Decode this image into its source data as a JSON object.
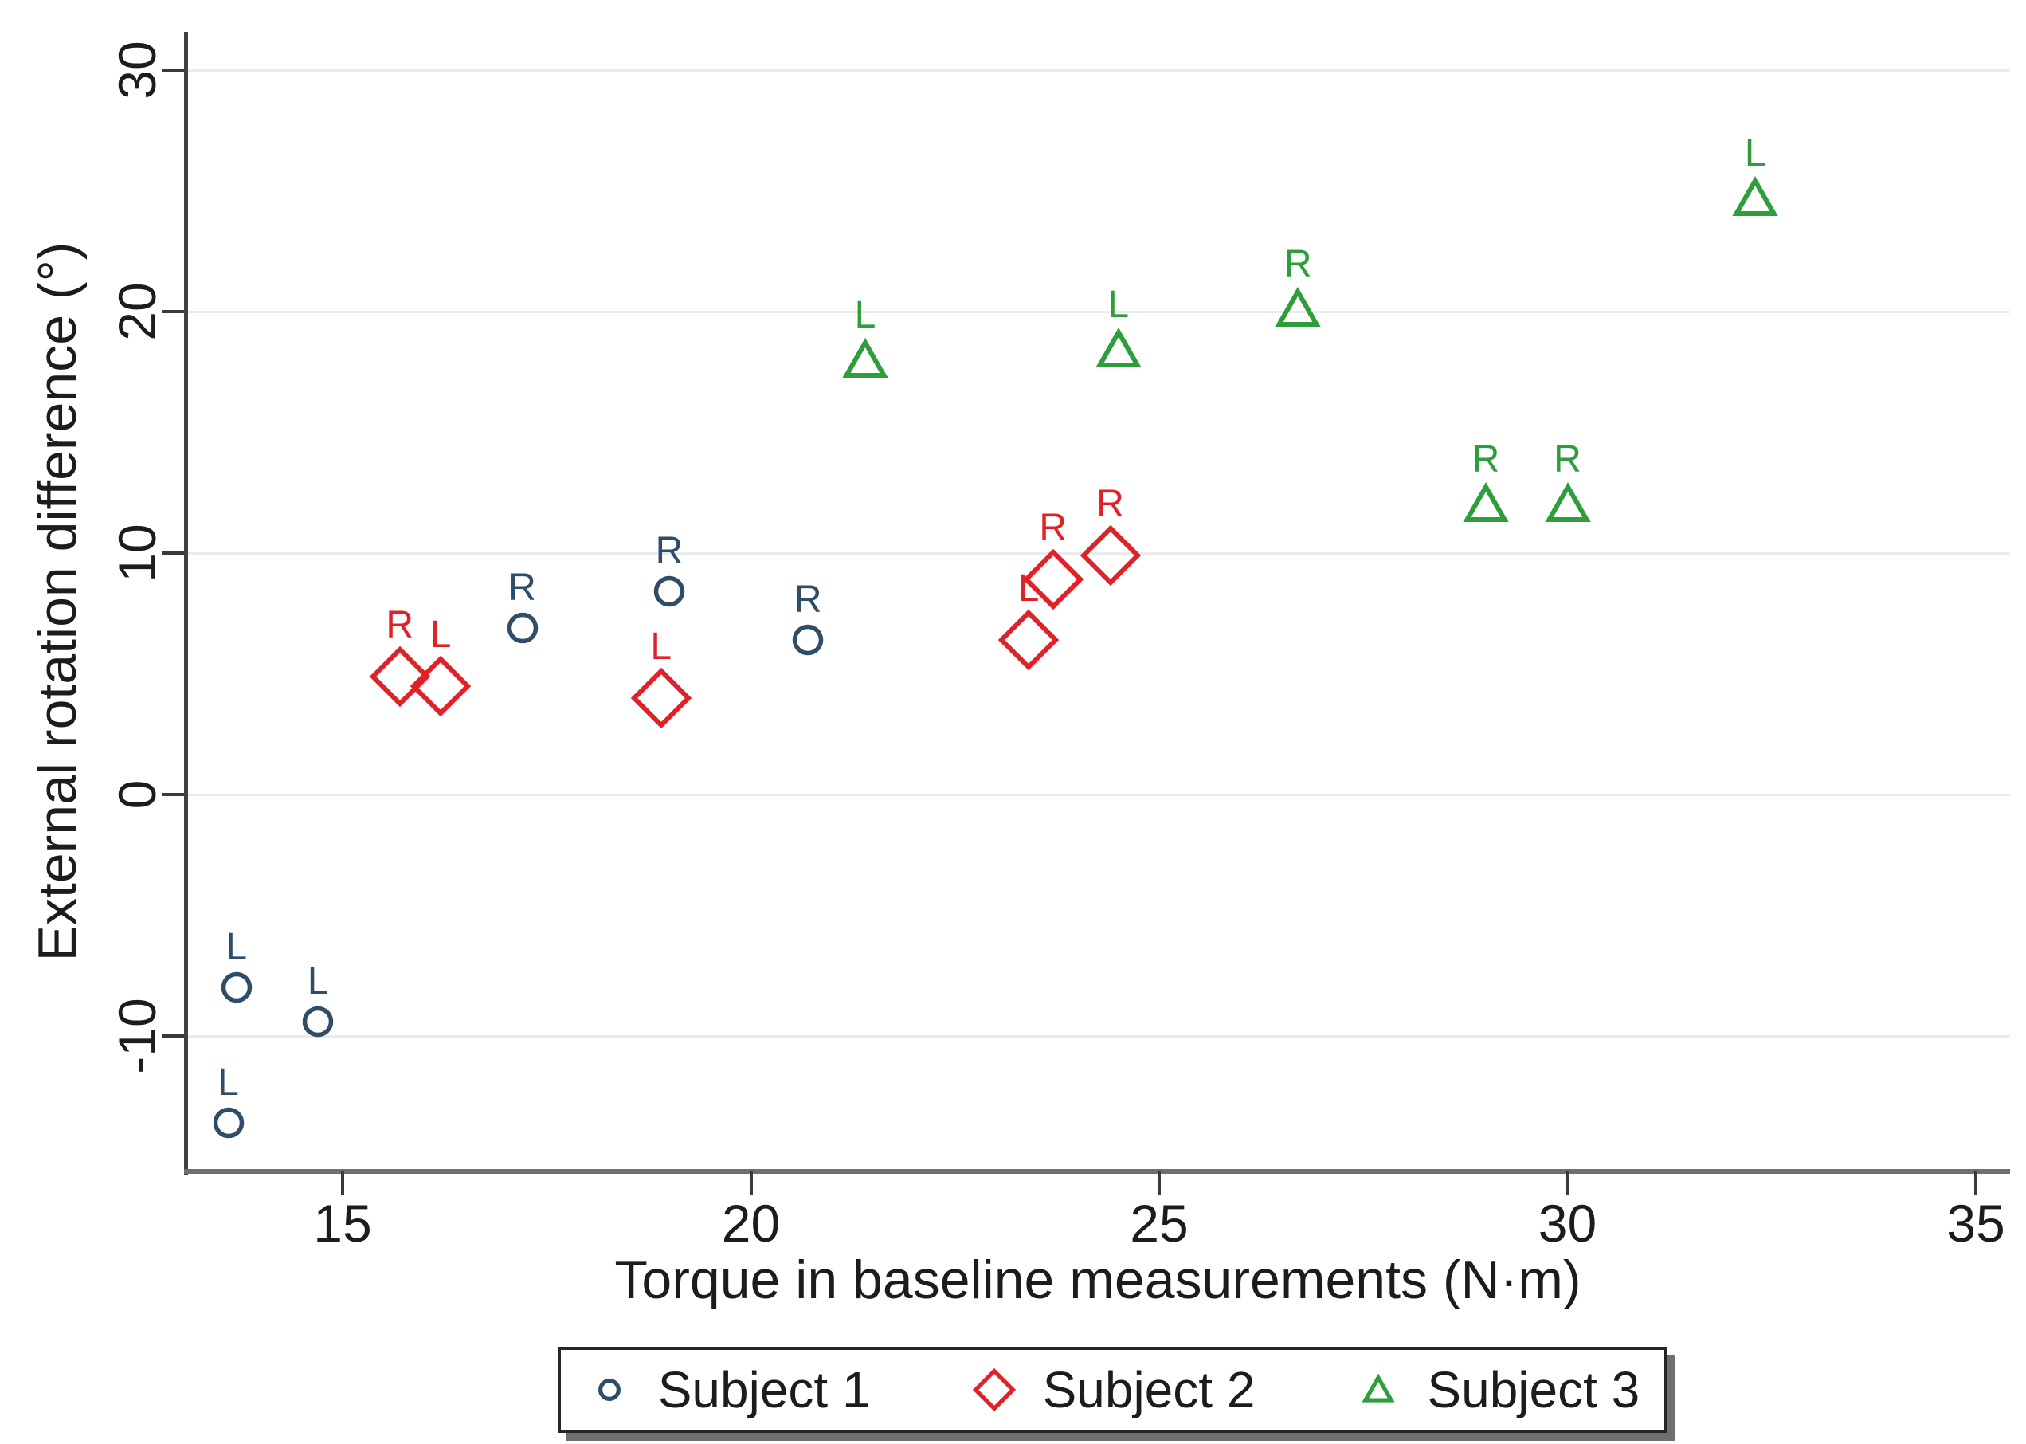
{
  "chart_data": {
    "type": "scatter",
    "title": "",
    "xlabel": "Torque in baseline measurements (N·m)",
    "ylabel": "External rotation difference (°)",
    "x_ticks": [
      15,
      20,
      25,
      30,
      35
    ],
    "y_ticks": [
      30,
      20,
      10,
      0,
      -10
    ],
    "xlim": [
      13.1,
      35.4
    ],
    "ylim": [
      -15.6,
      31.6
    ],
    "grid": "horizontal-only",
    "legend_position": "bottom-center",
    "series": [
      {
        "name": "Subject 1",
        "marker": "circle",
        "color": "#2E4D68",
        "points": [
          {
            "x": 13.6,
            "y": -13.6,
            "label": "L"
          },
          {
            "x": 13.7,
            "y": -8.0,
            "label": "L"
          },
          {
            "x": 14.7,
            "y": -9.4,
            "label": "L"
          },
          {
            "x": 17.2,
            "y": 6.9,
            "label": "R"
          },
          {
            "x": 19.0,
            "y": 8.4,
            "label": "R"
          },
          {
            "x": 20.7,
            "y": 6.4,
            "label": "R"
          }
        ]
      },
      {
        "name": "Subject 2",
        "marker": "diamond",
        "color": "#E02228",
        "points": [
          {
            "x": 15.7,
            "y": 4.9,
            "label": "R"
          },
          {
            "x": 16.2,
            "y": 4.5,
            "label": "L"
          },
          {
            "x": 18.9,
            "y": 4.0,
            "label": "L"
          },
          {
            "x": 23.4,
            "y": 6.4,
            "label": "L"
          },
          {
            "x": 23.7,
            "y": 8.9,
            "label": "R"
          },
          {
            "x": 24.4,
            "y": 9.9,
            "label": "R"
          }
        ]
      },
      {
        "name": "Subject 3",
        "marker": "triangle",
        "color": "#2E9E3C",
        "points": [
          {
            "x": 21.4,
            "y": 18.0,
            "label": "L"
          },
          {
            "x": 24.5,
            "y": 18.4,
            "label": "L"
          },
          {
            "x": 26.7,
            "y": 20.1,
            "label": "R"
          },
          {
            "x": 29.0,
            "y": 12.0,
            "label": "R"
          },
          {
            "x": 30.0,
            "y": 12.0,
            "label": "R"
          },
          {
            "x": 32.3,
            "y": 24.7,
            "label": "L"
          }
        ]
      }
    ]
  }
}
